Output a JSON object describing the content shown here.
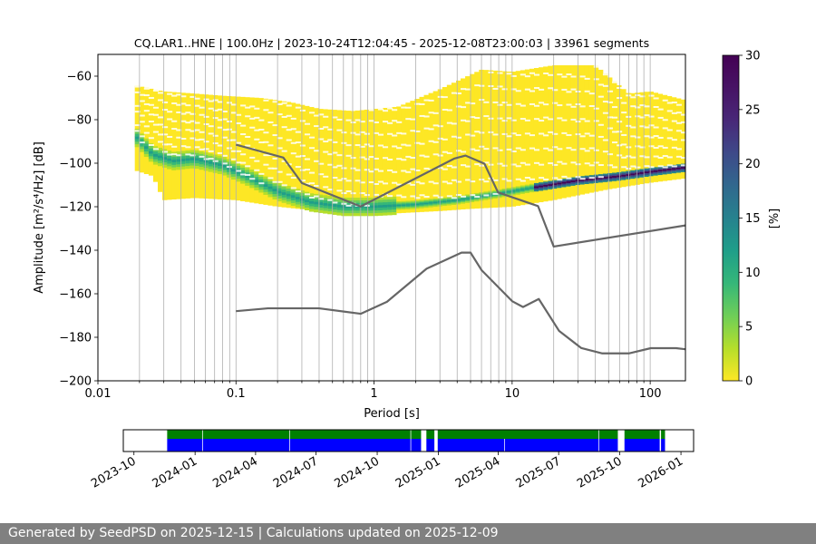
{
  "chart_data": [
    {
      "type": "heatmap",
      "title": "CQ.LAR1..HNE | 100.0Hz | 2023-10-24T12:04:45 - 2025-12-08T23:00:03 | 33961 segments",
      "xlabel": "Period [s]",
      "ylabel": "Amplitude [m²/s⁴/Hz] [dB]",
      "x_scale": "log",
      "xlim": [
        0.01,
        180
      ],
      "ylim": [
        -200,
        -50
      ],
      "x_ticks": [
        0.01,
        0.1,
        1,
        10,
        100
      ],
      "x_tick_labels": [
        "0.01",
        "0.1",
        "1",
        "10",
        "100"
      ],
      "y_ticks": [
        -200,
        -180,
        -160,
        -140,
        -120,
        -100,
        -80,
        -60
      ],
      "y_tick_labels": [
        "−200",
        "−180",
        "−160",
        "−140",
        "−120",
        "−100",
        "−80",
        "−60"
      ],
      "grid": "vertical",
      "colormap": "viridis_r",
      "colorbar": {
        "label": "[%]",
        "range": [
          0,
          30
        ],
        "ticks": [
          0,
          5,
          10,
          15,
          20,
          25,
          30
        ],
        "tick_labels": [
          "0",
          "5",
          "10",
          "15",
          "20",
          "25",
          "30"
        ]
      },
      "mode_curve": {
        "period": [
          0.019,
          0.025,
          0.035,
          0.05,
          0.08,
          0.12,
          0.2,
          0.35,
          0.6,
          1,
          2,
          4,
          8,
          15,
          30,
          60,
          100,
          180
        ],
        "amplitude": [
          -88,
          -96,
          -99,
          -98,
          -101,
          -106,
          -113,
          -118,
          -120,
          -120,
          -119,
          -117,
          -114,
          -111,
          -108,
          -106,
          -104,
          -102
        ]
      },
      "envelope": {
        "upper": {
          "period": [
            0.018,
            0.025,
            0.03,
            0.05,
            0.08,
            0.15,
            0.25,
            0.4,
            0.7,
            1.5,
            3,
            6,
            10,
            20,
            40,
            70,
            100,
            180
          ],
          "amplitude": [
            -64,
            -66,
            -67,
            -68,
            -69,
            -70,
            -72,
            -75,
            -76,
            -74,
            -66,
            -57,
            -58,
            -55,
            -55,
            -68,
            -67,
            -71
          ]
        },
        "lower": {
          "period": [
            0.018,
            0.025,
            0.03,
            0.05,
            0.1,
            0.2,
            0.4,
            0.8,
            1.5,
            3,
            5,
            10,
            20,
            50,
            100,
            180
          ],
          "amplitude": [
            -103,
            -106,
            -117,
            -116,
            -117,
            -120,
            -122,
            -123,
            -123,
            -122,
            -121,
            -120,
            -117,
            -112,
            -109,
            -107
          ]
        }
      },
      "series": [
        {
          "name": "",
          "period": [
            0.1,
            0.22,
            0.3,
            0.8,
            3.8,
            4.6,
            6.3,
            7.9,
            15.4,
            20,
            180
          ],
          "amplitude": [
            -91.5,
            -97.4,
            -109.1,
            -119.9,
            -97.9,
            -96.5,
            -100.2,
            -113.4,
            -119.7,
            -138.3,
            -128.6
          ]
        },
        {
          "name": "",
          "period": [
            0.1,
            0.17,
            0.4,
            0.8,
            1.24,
            2.4,
            4.3,
            5,
            6,
            10,
            12,
            15.6,
            21.9,
            31.6,
            45,
            70,
            101,
            154,
            180
          ],
          "amplitude": [
            -168,
            -166.7,
            -166.7,
            -169.2,
            -163.7,
            -148.5,
            -141.1,
            -141.1,
            -149.1,
            -163.4,
            -166.1,
            -162.4,
            -177.1,
            -184.9,
            -187.4,
            -187.4,
            -185,
            -185,
            -185.5
          ]
        }
      ]
    },
    {
      "type": "timeline",
      "x_ticks": [
        "2023-10",
        "2024-01",
        "2024-04",
        "2024-07",
        "2024-10",
        "2025-01",
        "2025-04",
        "2025-07",
        "2025-10",
        "2026-01"
      ],
      "xlim": [
        "2023-09-15",
        "2026-01-20"
      ],
      "rows": [
        {
          "color": "#008000",
          "segments": [
            [
              "2023-11-20",
              "2024-01-12"
            ],
            [
              "2024-01-13",
              "2024-05-22"
            ],
            [
              "2024-05-23",
              "2024-11-20"
            ],
            [
              "2024-11-21",
              "2024-12-06"
            ],
            [
              "2024-12-14",
              "2024-12-26"
            ],
            [
              "2024-12-31",
              "2025-08-30"
            ],
            [
              "2025-08-31",
              "2025-09-28"
            ],
            [
              "2025-10-08",
              "2025-11-30"
            ],
            [
              "2025-12-02",
              "2025-12-08"
            ]
          ]
        },
        {
          "color": "#0000ff",
          "segments": [
            [
              "2023-11-20",
              "2024-01-12"
            ],
            [
              "2024-01-13",
              "2024-05-22"
            ],
            [
              "2024-05-23",
              "2024-11-20"
            ],
            [
              "2024-11-21",
              "2024-12-06"
            ],
            [
              "2024-12-14",
              "2024-12-26"
            ],
            [
              "2024-12-31",
              "2025-04-10"
            ],
            [
              "2025-04-11",
              "2025-08-30"
            ],
            [
              "2025-08-31",
              "2025-09-28"
            ],
            [
              "2025-10-08",
              "2025-11-30"
            ],
            [
              "2025-12-02",
              "2025-12-08"
            ]
          ]
        }
      ]
    }
  ],
  "footer": {
    "text": "Generated by SeedPSD on 2025-12-15 | Calculations updated on 2025-12-09"
  }
}
